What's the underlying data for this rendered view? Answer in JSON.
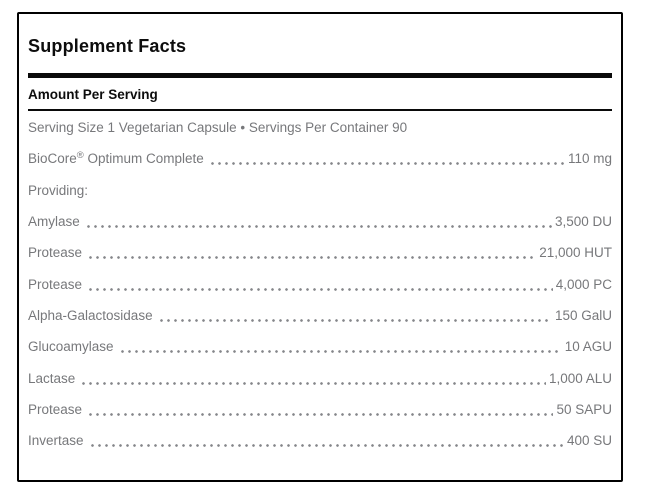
{
  "panel": {
    "title": "Supplement Facts",
    "header": "Amount Per Serving",
    "colors": {
      "rule_black": "#000000",
      "body_text_gray": "#77787B",
      "background": "#FFFFFF"
    }
  },
  "rows": [
    {
      "name": "Serving Size 1 Vegetarian Capsule • Servings Per Container 90"
    },
    {
      "name": "BioCore",
      "sup": "®",
      "name2": " Optimum Complete",
      "value": "110 mg"
    },
    {
      "name": "Providing:"
    },
    {
      "name": "Amylase",
      "value": "3,500 DU"
    },
    {
      "name": "Protease",
      "value": "21,000 HUT"
    },
    {
      "name": "Protease",
      "value": "4,000 PC"
    },
    {
      "name": "Alpha-Galactosidase",
      "value": "150 GalU"
    },
    {
      "name": "Glucoamylase",
      "value": "10 AGU"
    },
    {
      "name": "Lactase",
      "value": "1,000 ALU"
    },
    {
      "name": "Protease",
      "value": "50 SAPU"
    },
    {
      "name": "Invertase",
      "value": "400 SU"
    }
  ]
}
